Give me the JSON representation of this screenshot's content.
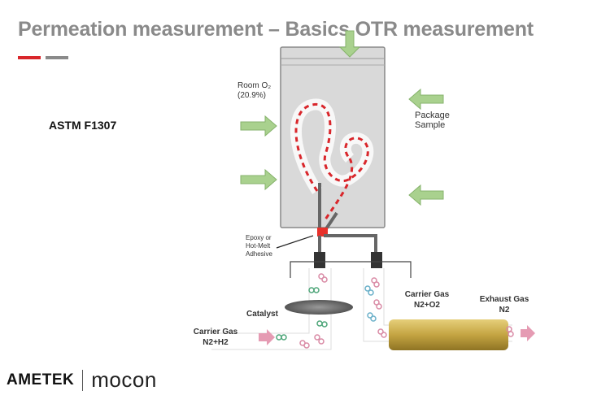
{
  "slide": {
    "title": "Permeation measurement – Basics OTR measurement",
    "accent_colors": [
      "#d9262b",
      "#8a8a8a"
    ],
    "standard": "ASTM F1307"
  },
  "diagram": {
    "room_o2_line1": "Room O₂",
    "room_o2_line2": "(20.9%)",
    "package_line1": "Package",
    "package_line2": "Sample",
    "adhesive_line1": "Epoxy or",
    "adhesive_line2": "Hot-Melt",
    "adhesive_line3": "Adhesive",
    "catalyst": "Catalyst",
    "carrier_in_line1": "Carrier Gas",
    "carrier_in_line2": "N2+H2",
    "carrier_o2_line1": "Carrier Gas",
    "carrier_o2_line2": "N2+O2",
    "exhaust_line1": "Exhaust Gas",
    "exhaust_line2": "N2",
    "arrow_color": "#a9d18e",
    "flow_color": "#d9262b",
    "sensor_color": "#c9a94a"
  },
  "footer": {
    "brand1": "AMETEK",
    "brand2": "mocon"
  }
}
